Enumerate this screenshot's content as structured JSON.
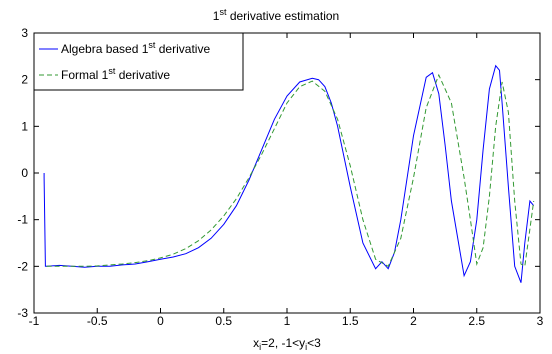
{
  "chart_data": {
    "type": "line",
    "title": {
      "base": "",
      "sup": "st",
      "pre": "1",
      "rest": " derivative estimation"
    },
    "xlabel": {
      "a": "x",
      "a_sub": "i",
      "b": "=2, -1<y",
      "b_sub": "i",
      "c": "<3"
    },
    "ylabel": "",
    "xlim": [
      -1,
      3
    ],
    "ylim": [
      -3,
      3
    ],
    "xticks": [
      "-1",
      "-0.5",
      "0",
      "0.5",
      "1",
      "1.5",
      "2",
      "2.5",
      "3"
    ],
    "yticks": [
      "-3",
      "-2",
      "-1",
      "0",
      "1",
      "2",
      "3"
    ],
    "grid": false,
    "legend_position": "top-left",
    "series": [
      {
        "name": {
          "pre": "Algebra based 1",
          "sup": "st",
          "post": " derivative"
        },
        "color": "#0000ff",
        "style": "solid",
        "x": [
          -0.92,
          -0.92,
          -0.91,
          -0.9,
          -0.8,
          -0.7,
          -0.6,
          -0.5,
          -0.4,
          -0.3,
          -0.2,
          -0.1,
          0.0,
          0.1,
          0.2,
          0.3,
          0.4,
          0.5,
          0.6,
          0.7,
          0.8,
          0.9,
          1.0,
          1.1,
          1.2,
          1.25,
          1.3,
          1.35,
          1.4,
          1.5,
          1.6,
          1.7,
          1.75,
          1.8,
          1.85,
          1.9,
          2.0,
          2.1,
          2.15,
          2.2,
          2.25,
          2.3,
          2.4,
          2.45,
          2.5,
          2.55,
          2.6,
          2.65,
          2.68,
          2.7,
          2.75,
          2.8,
          2.85,
          2.88,
          2.92,
          2.95
        ],
        "y": [
          0,
          -0.1,
          -2.0,
          -2.0,
          -1.98,
          -2.0,
          -2.02,
          -2.0,
          -2.0,
          -1.97,
          -1.95,
          -1.9,
          -1.85,
          -1.8,
          -1.73,
          -1.6,
          -1.4,
          -1.1,
          -0.7,
          -0.15,
          0.5,
          1.15,
          1.65,
          1.95,
          2.03,
          2.0,
          1.85,
          1.5,
          1.0,
          -0.3,
          -1.5,
          -2.05,
          -1.9,
          -2.05,
          -1.7,
          -1.0,
          0.8,
          2.05,
          2.15,
          1.7,
          0.6,
          -0.6,
          -2.2,
          -1.9,
          -1.0,
          0.5,
          1.8,
          2.3,
          2.2,
          1.5,
          -0.3,
          -2.0,
          -2.35,
          -1.5,
          -0.6,
          -0.7
        ]
      },
      {
        "name": {
          "pre": "Formal 1",
          "sup": "st",
          "post": " derivative"
        },
        "color": "#339933",
        "style": "dashed",
        "x": [
          -0.9,
          -0.8,
          -0.7,
          -0.6,
          -0.5,
          -0.4,
          -0.3,
          -0.2,
          -0.1,
          0.0,
          0.1,
          0.2,
          0.3,
          0.4,
          0.5,
          0.6,
          0.7,
          0.8,
          0.9,
          1.0,
          1.1,
          1.2,
          1.3,
          1.4,
          1.5,
          1.6,
          1.7,
          1.8,
          1.9,
          2.0,
          2.1,
          2.2,
          2.3,
          2.4,
          2.45,
          2.5,
          2.55,
          2.6,
          2.65,
          2.7,
          2.75,
          2.8,
          2.85,
          2.88,
          2.92,
          2.95
        ],
        "y": [
          -2.0,
          -2.0,
          -2.0,
          -2.0,
          -1.99,
          -1.97,
          -1.95,
          -1.92,
          -1.88,
          -1.82,
          -1.74,
          -1.62,
          -1.45,
          -1.22,
          -0.92,
          -0.55,
          -0.1,
          0.4,
          0.95,
          1.5,
          1.85,
          1.97,
          1.75,
          1.15,
          0.15,
          -1.0,
          -1.85,
          -2.0,
          -1.4,
          -0.1,
          1.4,
          2.1,
          1.5,
          -0.1,
          -1.0,
          -1.95,
          -1.6,
          -0.5,
          1.0,
          1.95,
          1.3,
          -0.6,
          -1.95,
          -2.0,
          -1.2,
          -0.6
        ]
      }
    ]
  }
}
